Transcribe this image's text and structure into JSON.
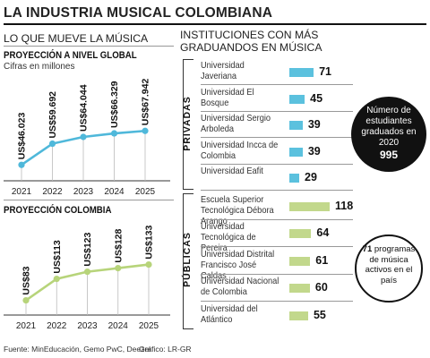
{
  "title": "LA INDUSTRIA MUSICAL COLOMBIANA",
  "left_header": "LO QUE MUEVE LA MÚSICA",
  "right_header_line1": "INSTITUCIONES CON MÁS",
  "right_header_line2": "GRADUANDOS EN MÚSICA",
  "colors": {
    "blue": "#5bc1de",
    "green": "#c2d88c",
    "blue_line": "#4fb8da",
    "green_line": "#b7d47a"
  },
  "chart_data": [
    {
      "type": "line",
      "title": "PROYECCIÓN A NIVEL GLOBAL",
      "subtitle": "Cifras en millones",
      "x": [
        "2021",
        "2022",
        "2023",
        "2024",
        "2025"
      ],
      "values": [
        46.023,
        59.692,
        64.044,
        66.329,
        67.942
      ],
      "labels": [
        "US$46.023",
        "US$59.692",
        "US$64.044",
        "US$66.329",
        "US$67.942"
      ],
      "ylim": [
        30,
        75
      ],
      "color": "#4fb8da"
    },
    {
      "type": "line",
      "title": "PROYECCIÓN COLOMBIA",
      "x": [
        "2021",
        "2022",
        "2023",
        "2024",
        "2025"
      ],
      "values": [
        83,
        113,
        123,
        128,
        133
      ],
      "labels": [
        "US$83",
        "US$113",
        "US$123",
        "US$128",
        "US$133"
      ],
      "ylim": [
        60,
        150
      ],
      "color": "#b7d47a"
    },
    {
      "type": "bar",
      "title": "INSTITUCIONES CON MÁS GRADUANDOS EN MÚSICA",
      "groups": [
        {
          "name": "PRIVADAS",
          "color": "#5bc1de",
          "items": [
            {
              "name": "Universidad Javeriana",
              "value": 71
            },
            {
              "name": "Universidad El Bosque",
              "value": 45
            },
            {
              "name": "Universidad Sergio Arboleda",
              "value": 39
            },
            {
              "name": "Universidad Incca de Colombia",
              "value": 39
            },
            {
              "name": "Universidad Eafit",
              "value": 29
            }
          ]
        },
        {
          "name": "PÚBLICAS",
          "color": "#c2d88c",
          "items": [
            {
              "name": "Escuela Superior Tecnológica Débora Arango",
              "value": 118
            },
            {
              "name": "Universidad Tecnológica de Pereira",
              "value": 64
            },
            {
              "name": "Universidad Distrital Francisco José Caldas",
              "value": 61
            },
            {
              "name": "Universidad Nacional de Colombia",
              "value": 60
            },
            {
              "name": "Universidad del Atlántico",
              "value": 55
            }
          ]
        }
      ]
    }
  ],
  "callout_private": {
    "line1": "Número de",
    "line2": "estudiantes",
    "line3": "graduados en",
    "line4": "2020",
    "value": "995"
  },
  "callout_public": {
    "value": "71",
    "line1": "programas",
    "line2": "de música",
    "line3": "activos en el",
    "line4": "país"
  },
  "footer": "Fuente: MinEducación, Gemo PwC, Deezer",
  "credit": "Gráfico: LR-GR"
}
